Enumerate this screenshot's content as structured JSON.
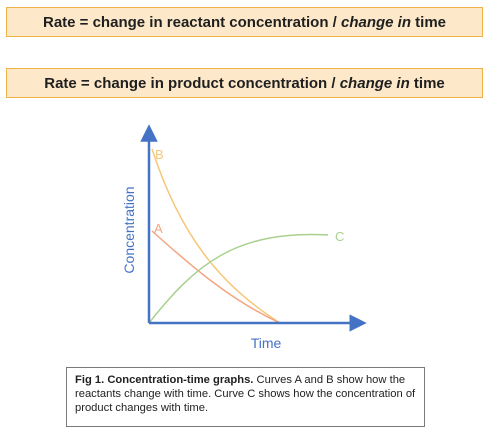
{
  "formulas": [
    {
      "prefix": "Rate = change in reactant concentration / ",
      "italic": "change in",
      "suffix": " time"
    },
    {
      "prefix": "Rate = change in product concentration / ",
      "italic": "change in",
      "suffix": " time"
    }
  ],
  "colors": {
    "box_fill": "#fde9c9",
    "box_border": "#f0b34a",
    "axis": "#4472c4",
    "curve_a": "#f4a582",
    "curve_b": "#f6c77a",
    "curve_c": "#a9d18e"
  },
  "chart_data": {
    "type": "line",
    "title": "",
    "xlabel": "Time",
    "ylabel": "Concentration",
    "series": [
      {
        "name": "A",
        "shape": "decreasing",
        "start": 0.55,
        "end": 0.0
      },
      {
        "name": "B",
        "shape": "decreasing",
        "start": 1.0,
        "end": 0.0
      },
      {
        "name": "C",
        "shape": "increasing",
        "start": 0.0,
        "end": 0.55
      }
    ],
    "grid": false
  },
  "caption": {
    "bold": "Fig 1. Concentration-time graphs.",
    "text": " Curves A and B show how the reactants change with time. Curve C shows how the concentration of product changes with time."
  }
}
